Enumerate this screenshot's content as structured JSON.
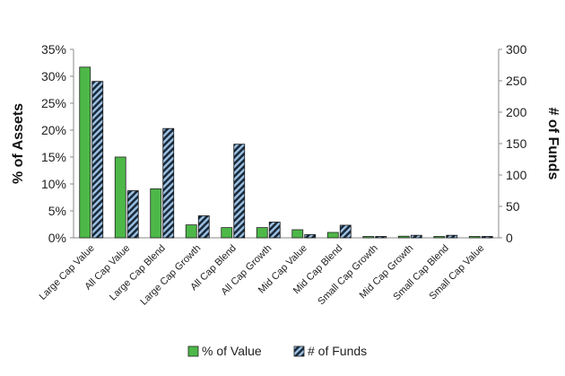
{
  "chart_data": {
    "type": "bar",
    "categories": [
      "Large Cap Value",
      "All Cap Value",
      "Large Cap Blend",
      "Large Cap Growth",
      "All Cap Blend",
      "All Cap Growth",
      "Mid Cap Value",
      "Mid Cap Blend",
      "Small Cap Growth",
      "Mid Cap Growth",
      "Small Cap Blend",
      "Small Cap Value"
    ],
    "series": [
      {
        "name": "% of Value",
        "axis": "left",
        "color": "#4db848",
        "values": [
          31.7,
          15.0,
          9.1,
          2.4,
          1.9,
          1.9,
          1.5,
          1.0,
          0.2,
          0.3,
          0.2,
          0.1
        ]
      },
      {
        "name": "# of Funds",
        "axis": "right",
        "color": "#1a2a3a",
        "stripe_color": "#9ec3e6",
        "values": [
          249,
          75,
          174,
          35,
          149,
          25,
          5,
          20,
          1,
          4,
          4,
          2
        ]
      }
    ],
    "ylabel": "% of Assets",
    "y2label": "# of Funds",
    "ylim": [
      0,
      35
    ],
    "y2lim": [
      0,
      300
    ],
    "yticks": [
      "0%",
      "5%",
      "10%",
      "15%",
      "20%",
      "25%",
      "30%",
      "35%"
    ],
    "y2ticks": [
      "0",
      "50",
      "100",
      "150",
      "200",
      "250",
      "300"
    ],
    "legend": {
      "position": "bottom",
      "entries": [
        "% of Value",
        "# of Funds"
      ]
    },
    "grid": false
  }
}
